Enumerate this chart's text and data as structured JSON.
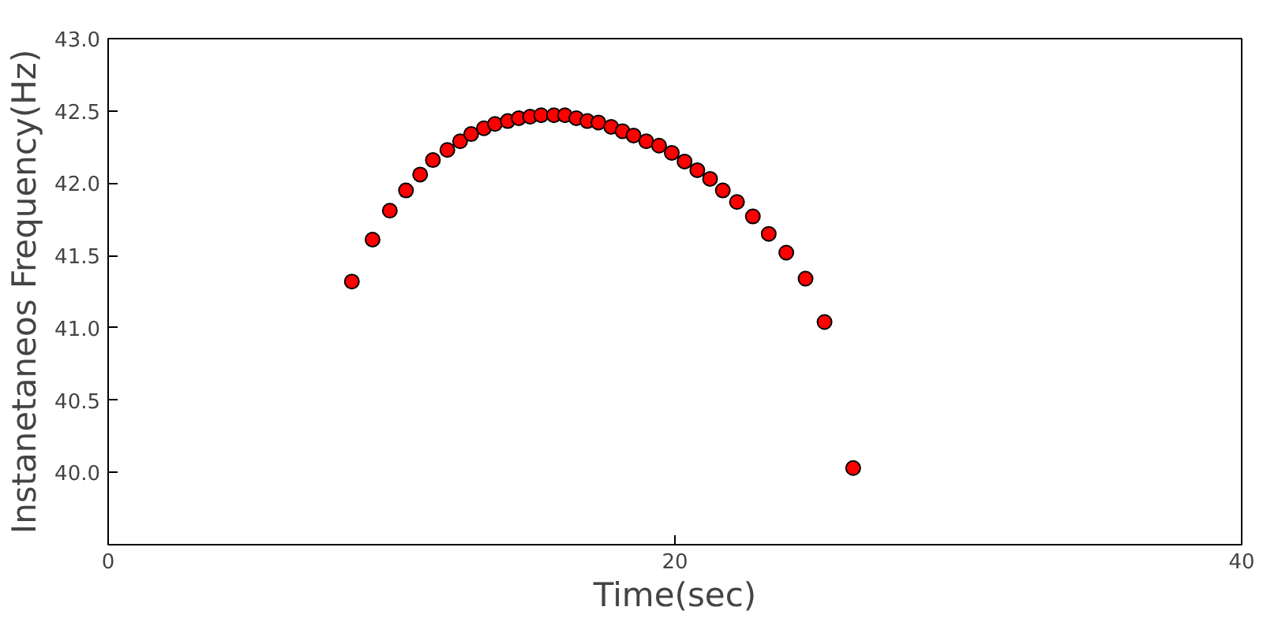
{
  "chart_data": {
    "type": "scatter",
    "xlabel": "Time(sec)",
    "ylabel": "Instanetaneos Frequency(Hz)",
    "x": [
      8.6,
      9.33,
      9.94,
      10.51,
      11.01,
      11.46,
      11.97,
      12.42,
      12.81,
      13.26,
      13.65,
      14.1,
      14.49,
      14.89,
      15.28,
      15.73,
      16.12,
      16.52,
      16.91,
      17.3,
      17.75,
      18.15,
      18.54,
      18.99,
      19.44,
      19.89,
      20.34,
      20.79,
      21.24,
      21.69,
      22.19,
      22.75,
      23.31,
      23.93,
      24.61,
      25.28,
      26.29
    ],
    "series": [
      {
        "color": "#ff0000",
        "values": [
          41.32,
          41.61,
          41.81,
          41.95,
          42.06,
          42.16,
          42.23,
          42.29,
          42.34,
          42.38,
          42.41,
          42.43,
          42.45,
          42.46,
          42.47,
          42.47,
          42.47,
          42.45,
          42.43,
          42.42,
          42.39,
          42.36,
          42.33,
          42.29,
          42.26,
          42.21,
          42.15,
          42.09,
          42.03,
          41.95,
          41.87,
          41.77,
          41.65,
          41.52,
          41.34,
          41.04,
          40.03
        ]
      }
    ],
    "xlim": [
      0,
      40
    ],
    "ylim": [
      39.5,
      43.0
    ],
    "xticks": [
      0,
      20,
      40
    ],
    "yticks": [
      {
        "value": 40.0,
        "label": "40.0"
      },
      {
        "value": 40.5,
        "label": "40.5"
      },
      {
        "value": 41.0,
        "label": "41.0"
      },
      {
        "value": 41.5,
        "label": "41.5"
      },
      {
        "value": 42.0,
        "label": "42.0"
      },
      {
        "value": 42.5,
        "label": "42.5"
      },
      {
        "value": 43.0,
        "label": "43.0"
      }
    ],
    "grid": false,
    "marker": "circle"
  }
}
